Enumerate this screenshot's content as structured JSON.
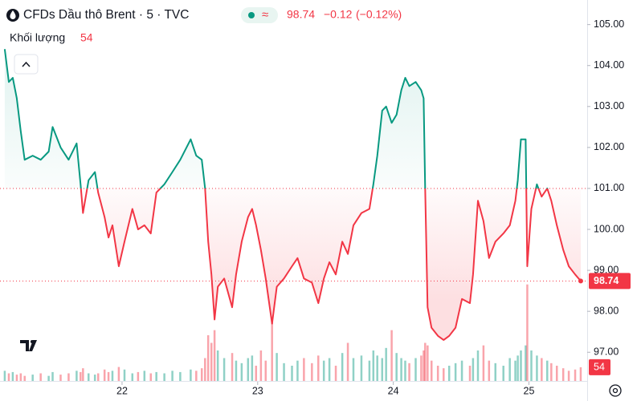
{
  "chart_data": {
    "type": "baseline",
    "title": "CFDs Dầu thô Brent · 5 · TVC",
    "price": 98.74,
    "change": {
      "value": -0.12,
      "label": "−0.12"
    },
    "change_pct": {
      "value": -0.12,
      "label": "(−0.12%)"
    },
    "volume_label": "Khối lượng",
    "volume_last": 54,
    "baseline": 101,
    "up_color": "#089981",
    "down_color": "#f23645",
    "xlim": [
      21.1,
      25.4
    ],
    "xticks": [
      22,
      23,
      24,
      25
    ],
    "ylim": [
      96.3,
      105.6
    ],
    "yticks": [
      {
        "value": 97,
        "label": "97.00"
      },
      {
        "value": 98,
        "label": "98.00"
      },
      {
        "value": 99,
        "label": "99.00"
      },
      {
        "value": 100,
        "label": "100.00"
      },
      {
        "value": 101,
        "label": "101.00"
      },
      {
        "value": 102,
        "label": "102.00"
      },
      {
        "value": 103,
        "label": "103.00"
      },
      {
        "value": 104,
        "label": "104.00"
      },
      {
        "value": 105,
        "label": "105.00"
      }
    ],
    "grid": false,
    "vlim": [
      0,
      1500
    ],
    "x": [
      21.135,
      21.165,
      21.194,
      21.224,
      21.253,
      21.282,
      21.341,
      21.4,
      21.459,
      21.488,
      21.547,
      21.606,
      21.665,
      21.694,
      21.712,
      21.753,
      21.8,
      21.824,
      21.871,
      21.9,
      21.929,
      21.976,
      22.018,
      22.076,
      22.118,
      22.165,
      22.212,
      22.253,
      22.312,
      22.371,
      22.429,
      22.506,
      22.547,
      22.588,
      22.612,
      22.635,
      22.659,
      22.682,
      22.706,
      22.753,
      22.812,
      22.841,
      22.882,
      22.929,
      22.959,
      22.988,
      23.024,
      23.059,
      23.106,
      23.141,
      23.194,
      23.253,
      23.294,
      23.341,
      23.4,
      23.447,
      23.488,
      23.529,
      23.576,
      23.624,
      23.665,
      23.706,
      23.765,
      23.824,
      23.853,
      23.882,
      23.918,
      23.947,
      23.988,
      24.024,
      24.059,
      24.088,
      24.118,
      24.165,
      24.206,
      24.224,
      24.235,
      24.253,
      24.282,
      24.329,
      24.371,
      24.412,
      24.459,
      24.506,
      24.565,
      24.588,
      24.624,
      24.665,
      24.706,
      24.753,
      24.812,
      24.859,
      24.9,
      24.918,
      24.941,
      24.976,
      24.988,
      25.018,
      25.059,
      25.094,
      25.135,
      25.165,
      25.206,
      25.253,
      25.294,
      25.341,
      25.382
    ],
    "values": [
      104.4,
      103.6,
      103.7,
      103.2,
      102.4,
      101.7,
      101.8,
      101.7,
      101.9,
      102.5,
      102.0,
      101.7,
      102.1,
      101.1,
      100.4,
      101.2,
      101.4,
      100.9,
      100.3,
      99.8,
      100.1,
      99.1,
      99.7,
      100.5,
      100.0,
      100.1,
      99.9,
      100.9,
      101.1,
      101.4,
      101.7,
      102.2,
      101.8,
      101.7,
      101.0,
      99.7,
      98.9,
      97.8,
      98.6,
      98.8,
      98.1,
      98.9,
      99.7,
      100.3,
      100.5,
      100.1,
      99.5,
      98.8,
      97.7,
      98.6,
      98.8,
      99.1,
      99.3,
      98.8,
      98.7,
      98.2,
      98.8,
      99.2,
      98.9,
      99.7,
      99.4,
      100.1,
      100.4,
      100.5,
      101.1,
      101.8,
      102.9,
      103.0,
      102.6,
      102.8,
      103.4,
      103.7,
      103.5,
      103.6,
      103.4,
      103.2,
      101.0,
      98.1,
      97.6,
      97.4,
      97.3,
      97.4,
      97.6,
      98.3,
      98.2,
      98.9,
      100.7,
      100.2,
      99.3,
      99.7,
      99.9,
      100.1,
      100.7,
      101.2,
      102.2,
      102.2,
      99.1,
      100.5,
      101.1,
      100.8,
      101.0,
      100.7,
      100.1,
      99.5,
      99.1,
      98.9,
      98.74
    ],
    "volume": [
      40,
      30,
      35,
      25,
      30,
      20,
      25,
      30,
      20,
      35,
      25,
      30,
      40,
      35,
      50,
      30,
      25,
      30,
      45,
      35,
      40,
      55,
      45,
      30,
      35,
      40,
      30,
      35,
      30,
      40,
      35,
      45,
      40,
      50,
      90,
      180,
      150,
      200,
      120,
      90,
      110,
      80,
      70,
      90,
      100,
      60,
      120,
      80,
      250,
      110,
      70,
      60,
      80,
      90,
      70,
      100,
      80,
      90,
      60,
      110,
      150,
      90,
      100,
      80,
      120,
      100,
      90,
      130,
      200,
      110,
      90,
      80,
      70,
      90,
      100,
      120,
      150,
      140,
      80,
      60,
      50,
      60,
      70,
      80,
      60,
      90,
      120,
      140,
      80,
      70,
      60,
      90,
      80,
      100,
      120,
      140,
      380,
      120,
      100,
      90,
      80,
      70,
      60,
      50,
      40,
      45,
      54
    ]
  }
}
